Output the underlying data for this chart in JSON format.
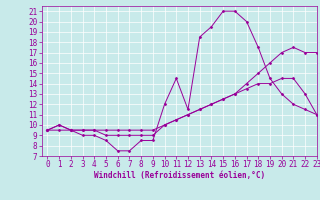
{
  "xlabel": "Windchill (Refroidissement éolien,°C)",
  "xlim": [
    -0.5,
    23
  ],
  "ylim": [
    7,
    21.5
  ],
  "xticks": [
    0,
    1,
    2,
    3,
    4,
    5,
    6,
    7,
    8,
    9,
    10,
    11,
    12,
    13,
    14,
    15,
    16,
    17,
    18,
    19,
    20,
    21,
    22,
    23
  ],
  "yticks": [
    7,
    8,
    9,
    10,
    11,
    12,
    13,
    14,
    15,
    16,
    17,
    18,
    19,
    20,
    21
  ],
  "bg_color": "#c8eaea",
  "grid_color": "#ffffff",
  "line_color": "#990099",
  "line1_x": [
    0,
    1,
    2,
    3,
    4,
    5,
    6,
    7,
    8,
    9,
    10,
    11,
    12,
    13,
    14,
    15,
    16,
    17,
    18,
    19,
    20,
    21,
    22,
    23
  ],
  "line1_y": [
    9.5,
    10,
    9.5,
    9,
    9,
    8.5,
    7.5,
    7.5,
    8.5,
    8.5,
    12,
    14.5,
    11.5,
    18.5,
    19.5,
    21,
    21,
    20,
    17.5,
    14.5,
    13,
    12,
    11.5,
    11
  ],
  "line2_x": [
    0,
    1,
    2,
    3,
    4,
    5,
    6,
    7,
    8,
    9,
    10,
    11,
    12,
    13,
    14,
    15,
    16,
    17,
    18,
    19,
    20,
    21,
    22,
    23
  ],
  "line2_y": [
    9.5,
    10,
    9.5,
    9.5,
    9.5,
    9,
    9,
    9,
    9,
    9,
    10,
    10.5,
    11,
    11.5,
    12,
    12.5,
    13,
    13.5,
    14,
    14,
    14.5,
    14.5,
    13,
    11
  ],
  "line3_x": [
    0,
    1,
    2,
    3,
    4,
    5,
    6,
    7,
    8,
    9,
    10,
    11,
    12,
    13,
    14,
    15,
    16,
    17,
    18,
    19,
    20,
    21,
    22,
    23
  ],
  "line3_y": [
    9.5,
    9.5,
    9.5,
    9.5,
    9.5,
    9.5,
    9.5,
    9.5,
    9.5,
    9.5,
    10,
    10.5,
    11,
    11.5,
    12,
    12.5,
    13,
    14,
    15,
    16,
    17,
    17.5,
    17,
    17
  ],
  "marker": "D",
  "marker_size": 1.5,
  "line_width": 0.7,
  "tick_fontsize": 5.5,
  "xlabel_fontsize": 5.5
}
